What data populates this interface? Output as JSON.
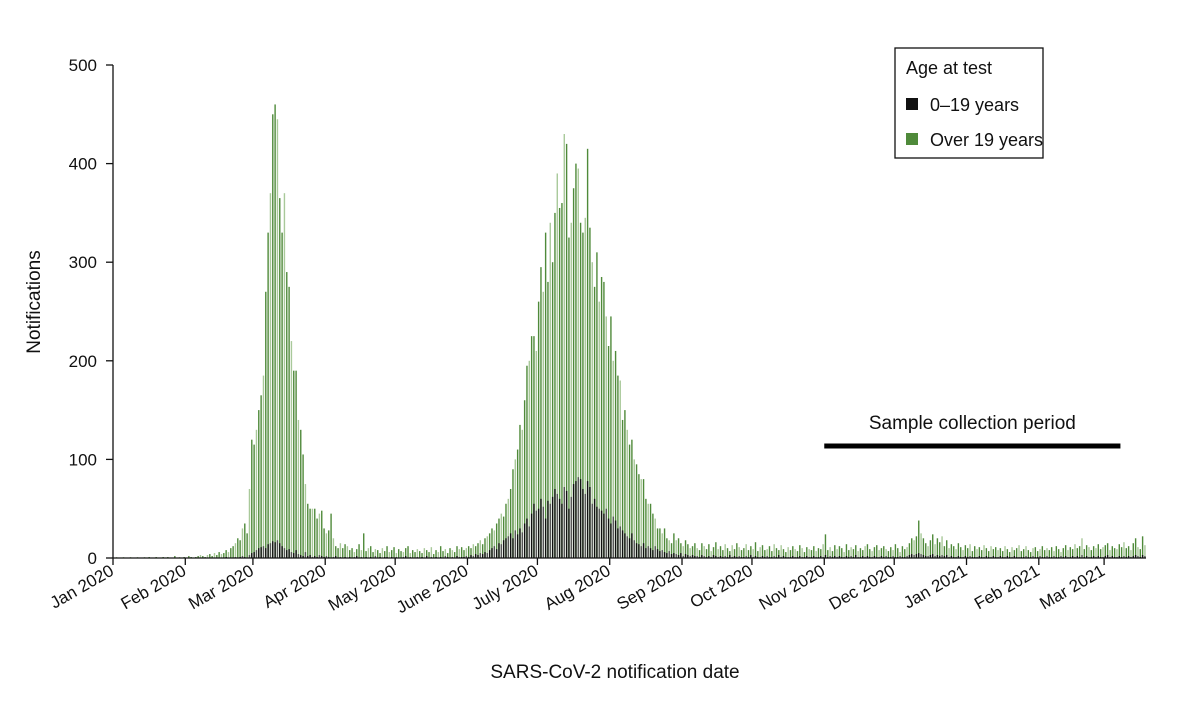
{
  "chart_data": {
    "type": "bar",
    "mode": "overlapping",
    "xlabel": "SARS-CoV-2 notification date",
    "ylabel": "Notifications",
    "ylim": [
      0,
      500
    ],
    "yticks": [
      0,
      100,
      200,
      300,
      400,
      500
    ],
    "x_start_date": "2020-01-01",
    "x_unit": "day",
    "xticks": [
      {
        "day": 0,
        "label": "Jan 2020"
      },
      {
        "day": 31,
        "label": "Feb 2020"
      },
      {
        "day": 60,
        "label": "Mar 2020"
      },
      {
        "day": 91,
        "label": "Apr 2020"
      },
      {
        "day": 121,
        "label": "May 2020"
      },
      {
        "day": 152,
        "label": "June 2020"
      },
      {
        "day": 182,
        "label": "July 2020"
      },
      {
        "day": 213,
        "label": "Aug 2020"
      },
      {
        "day": 244,
        "label": "Sep 2020"
      },
      {
        "day": 274,
        "label": "Oct 2020"
      },
      {
        "day": 305,
        "label": "Nov 2020"
      },
      {
        "day": 335,
        "label": "Dec 2020"
      },
      {
        "day": 366,
        "label": "Jan 2021"
      },
      {
        "day": 397,
        "label": "Feb 2021"
      },
      {
        "day": 425,
        "label": "Mar 2021"
      }
    ],
    "grid": false,
    "legend": {
      "title": "Age at test",
      "placement": "top-right"
    },
    "series": [
      {
        "name": "Over 19 years",
        "color": "#4f8a3a",
        "color_alt": "#a9c99a",
        "values": [
          0,
          1,
          0,
          0,
          1,
          0,
          0,
          1,
          0,
          0,
          1,
          0,
          0,
          1,
          0,
          1,
          0,
          0,
          1,
          0,
          0,
          1,
          0,
          1,
          0,
          0,
          2,
          0,
          1,
          0,
          1,
          0,
          2,
          1,
          0,
          1,
          2,
          3,
          2,
          1,
          3,
          4,
          2,
          5,
          3,
          6,
          4,
          5,
          8,
          6,
          10,
          12,
          15,
          20,
          18,
          30,
          35,
          25,
          70,
          120,
          115,
          130,
          150,
          165,
          185,
          270,
          330,
          370,
          450,
          460,
          445,
          365,
          330,
          370,
          290,
          275,
          220,
          190,
          190,
          140,
          130,
          105,
          75,
          55,
          50,
          50,
          50,
          40,
          45,
          48,
          30,
          25,
          28,
          45,
          20,
          12,
          10,
          15,
          10,
          14,
          12,
          8,
          10,
          6,
          9,
          14,
          8,
          25,
          7,
          10,
          12,
          6,
          9,
          8,
          5,
          10,
          7,
          12,
          6,
          8,
          11,
          5,
          9,
          7,
          6,
          10,
          12,
          5,
          8,
          6,
          9,
          7,
          5,
          10,
          8,
          6,
          11,
          4,
          8,
          6,
          12,
          7,
          9,
          5,
          10,
          8,
          6,
          12,
          9,
          11,
          8,
          10,
          12,
          10,
          14,
          12,
          15,
          18,
          14,
          20,
          22,
          25,
          30,
          28,
          35,
          40,
          45,
          42,
          55,
          60,
          70,
          90,
          100,
          110,
          135,
          130,
          160,
          195,
          200,
          225,
          225,
          210,
          260,
          295,
          270,
          330,
          280,
          340,
          300,
          350,
          390,
          355,
          360,
          430,
          420,
          325,
          340,
          375,
          400,
          395,
          340,
          330,
          345,
          415,
          335,
          300,
          275,
          310,
          260,
          285,
          280,
          245,
          215,
          245,
          200,
          210,
          185,
          180,
          140,
          150,
          130,
          115,
          120,
          100,
          95,
          85,
          80,
          80,
          60,
          55,
          55,
          45,
          40,
          30,
          30,
          25,
          30,
          20,
          18,
          15,
          25,
          18,
          20,
          15,
          12,
          18,
          14,
          10,
          12,
          15,
          10,
          8,
          15,
          12,
          9,
          14,
          7,
          11,
          16,
          9,
          12,
          8,
          14,
          10,
          7,
          13,
          9,
          15,
          11,
          8,
          10,
          14,
          8,
          12,
          9,
          16,
          7,
          11,
          13,
          8,
          9,
          12,
          7,
          14,
          10,
          8,
          13,
          9,
          6,
          11,
          8,
          12,
          9,
          7,
          13,
          10,
          6,
          11,
          9,
          8,
          12,
          7,
          10,
          9,
          14,
          24,
          8,
          11,
          7,
          13,
          9,
          12,
          10,
          6,
          14,
          8,
          11,
          9,
          13,
          7,
          10,
          8,
          12,
          14,
          9,
          7,
          11,
          13,
          8,
          10,
          12,
          9,
          7,
          11,
          8,
          14,
          10,
          6,
          12,
          9,
          11,
          15,
          20,
          18,
          22,
          38,
          25,
          20,
          15,
          12,
          18,
          24,
          14,
          20,
          16,
          22,
          12,
          18,
          10,
          14,
          12,
          9,
          15,
          11,
          8,
          13,
          10,
          14,
          7,
          12,
          9,
          11,
          8,
          13,
          10,
          7,
          12,
          9,
          11,
          8,
          10,
          7,
          12,
          9,
          6,
          11,
          8,
          10,
          13,
          7,
          9,
          12,
          8,
          6,
          10,
          11,
          7,
          9,
          12,
          8,
          10,
          8,
          11,
          7,
          12,
          9,
          6,
          10,
          13,
          8,
          11,
          9,
          14,
          10,
          12,
          20,
          9,
          13,
          11,
          8,
          12,
          10,
          14,
          9,
          11,
          13,
          15,
          8,
          12,
          10,
          9,
          14,
          11,
          16,
          10,
          12,
          8,
          15,
          20,
          11,
          9,
          22,
          13
        ]
      },
      {
        "name": "0–19 years",
        "color": "#111111",
        "color_alt": "#555555",
        "values": [
          0,
          0,
          0,
          0,
          0,
          0,
          0,
          0,
          0,
          0,
          0,
          0,
          0,
          0,
          0,
          0,
          0,
          0,
          0,
          0,
          0,
          0,
          0,
          0,
          0,
          0,
          0,
          0,
          0,
          0,
          0,
          0,
          0,
          0,
          0,
          0,
          0,
          0,
          0,
          0,
          0,
          0,
          0,
          0,
          0,
          0,
          0,
          0,
          1,
          0,
          0,
          0,
          1,
          0,
          1,
          2,
          1,
          0,
          3,
          5,
          6,
          8,
          10,
          11,
          12,
          10,
          14,
          15,
          17,
          16,
          18,
          15,
          12,
          10,
          8,
          9,
          6,
          5,
          8,
          4,
          3,
          2,
          6,
          2,
          3,
          1,
          2,
          1,
          3,
          2,
          1,
          2,
          1,
          0,
          1,
          2,
          0,
          1,
          0,
          1,
          0,
          1,
          0,
          1,
          2,
          0,
          1,
          0,
          1,
          0,
          1,
          0,
          2,
          0,
          1,
          0,
          1,
          1,
          0,
          1,
          0,
          1,
          0,
          0,
          1,
          2,
          0,
          1,
          0,
          0,
          1,
          0,
          1,
          0,
          2,
          0,
          1,
          0,
          1,
          0,
          1,
          0,
          2,
          1,
          0,
          1,
          0,
          2,
          1,
          1,
          1,
          2,
          1,
          3,
          2,
          4,
          3,
          5,
          4,
          6,
          5,
          8,
          10,
          12,
          9,
          15,
          14,
          18,
          20,
          22,
          25,
          20,
          28,
          24,
          30,
          26,
          35,
          40,
          32,
          45,
          55,
          48,
          50,
          60,
          52,
          40,
          58,
          55,
          62,
          70,
          65,
          60,
          55,
          72,
          68,
          50,
          62,
          75,
          78,
          82,
          80,
          70,
          65,
          78,
          72,
          55,
          60,
          52,
          50,
          48,
          45,
          50,
          40,
          35,
          42,
          38,
          30,
          32,
          28,
          25,
          22,
          20,
          25,
          18,
          15,
          14,
          12,
          15,
          10,
          12,
          10,
          8,
          12,
          9,
          7,
          8,
          6,
          5,
          7,
          4,
          5,
          4,
          3,
          5,
          2,
          4,
          3,
          2,
          3,
          2,
          2,
          1,
          3,
          2,
          1,
          2,
          1,
          3,
          2,
          1,
          2,
          1,
          2,
          1,
          3,
          1,
          2,
          1,
          2,
          1,
          1,
          2,
          1,
          3,
          1,
          2,
          1,
          1,
          2,
          1,
          2,
          1,
          1,
          2,
          1,
          3,
          1,
          2,
          1,
          1,
          1,
          2,
          1,
          1,
          2,
          1,
          1,
          2,
          1,
          1,
          2,
          1,
          1,
          2,
          1,
          3,
          1,
          2,
          1,
          2,
          1,
          2,
          1,
          1,
          2,
          1,
          2,
          1,
          3,
          1,
          1,
          2,
          1,
          2,
          1,
          1,
          2,
          1,
          1,
          2,
          1,
          2,
          1,
          1,
          2,
          1,
          1,
          2,
          1,
          1,
          2,
          3,
          4,
          3,
          4,
          5,
          4,
          3,
          2,
          2,
          3,
          4,
          2,
          3,
          2,
          3,
          2,
          3,
          1,
          2,
          1,
          1,
          2,
          1,
          1,
          2,
          1,
          2,
          1,
          1,
          1,
          2,
          1,
          1,
          2,
          1,
          1,
          2,
          1,
          1,
          2,
          1,
          1,
          2,
          1,
          1,
          2,
          1,
          1,
          1,
          1,
          2,
          1,
          1,
          2,
          1,
          1,
          2,
          1,
          1,
          2,
          1,
          1,
          2,
          1,
          1,
          2,
          1,
          2,
          1,
          1,
          2,
          1,
          2,
          1,
          3,
          1,
          2,
          1,
          1,
          2,
          1,
          2,
          1,
          1,
          2,
          3,
          1,
          2,
          1,
          1,
          2,
          1,
          2,
          1,
          2,
          1,
          2,
          3,
          2,
          1,
          3,
          2
        ]
      }
    ],
    "annotations": [
      {
        "text": "Sample collection period",
        "start_day": 305,
        "end_day": 432
      }
    ]
  }
}
